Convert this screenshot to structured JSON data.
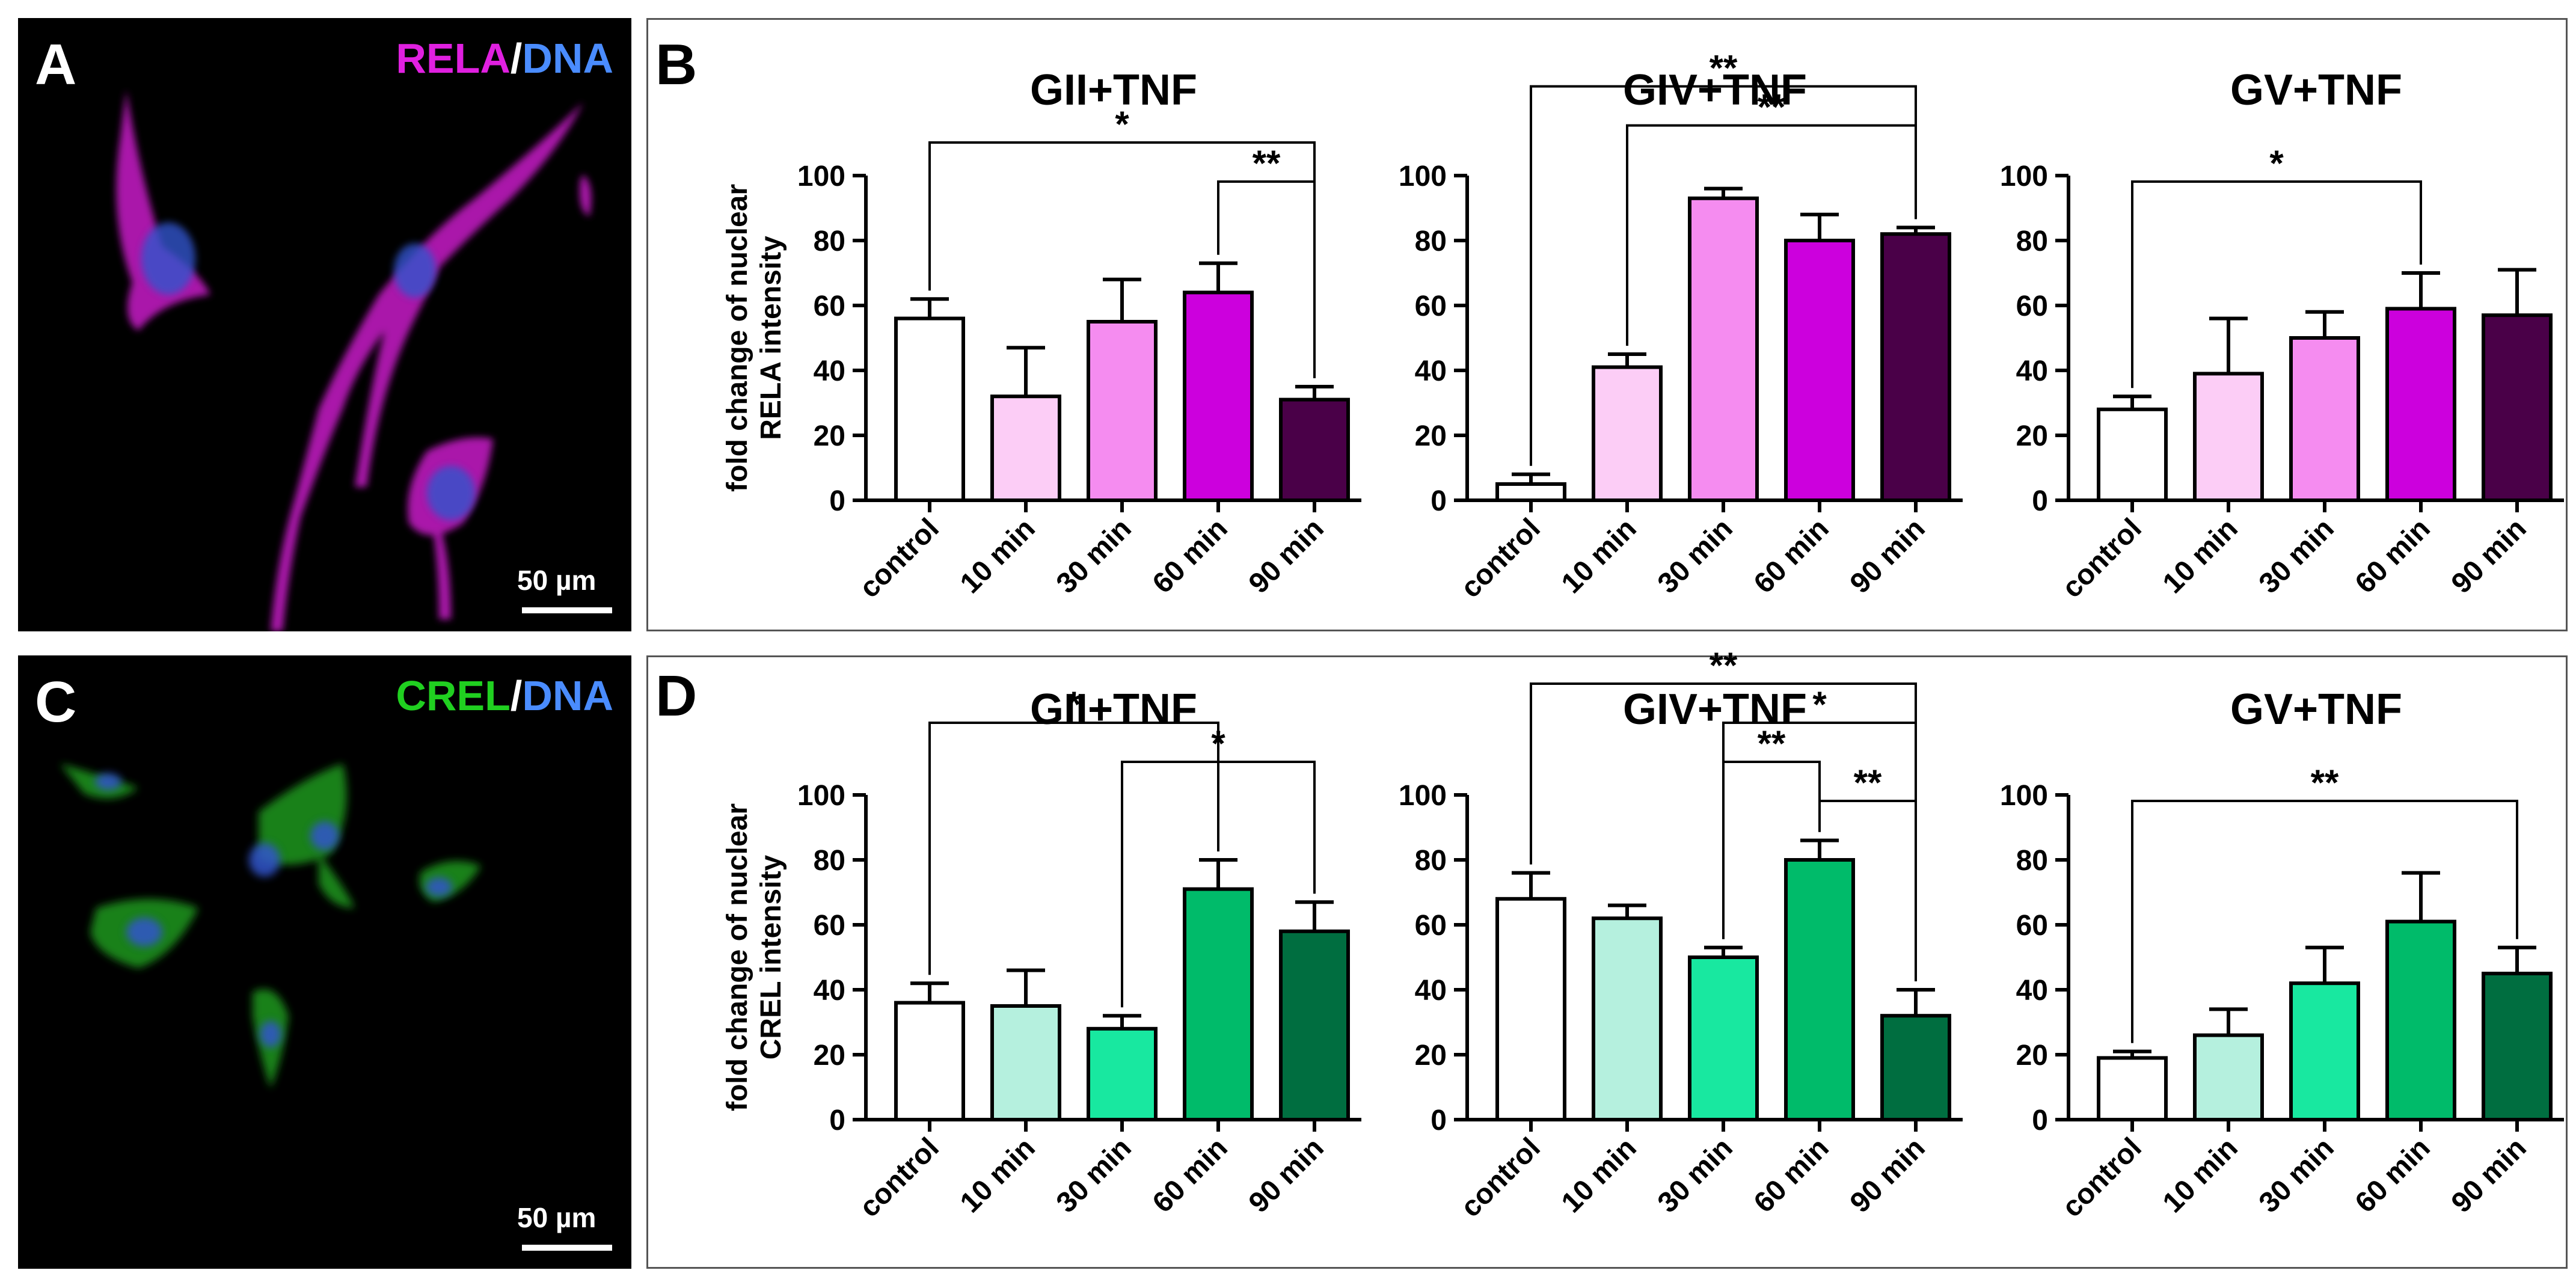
{
  "panels": {
    "A": {
      "label": "A",
      "stain_main": "RELA",
      "stain_sep": "/",
      "stain_dna": "DNA",
      "main_color": "#e020e0",
      "scale": "50 µm"
    },
    "B": {
      "label": "B"
    },
    "C": {
      "label": "C",
      "stain_main": "CREL",
      "stain_sep": "/",
      "stain_dna": "DNA",
      "main_color": "#20d020",
      "scale": "50 µm"
    },
    "D": {
      "label": "D"
    }
  },
  "colors": {
    "dna": "#4a8cff",
    "rela": [
      "#ffffff",
      "#fccdf6",
      "#f58cf0",
      "#cc00dd",
      "#4a0048"
    ],
    "crel": [
      "#ffffff",
      "#b5f0de",
      "#18e8a0",
      "#00bb6a",
      "#006e40"
    ]
  },
  "chart_data": [
    {
      "type": "bar",
      "panel": "B",
      "title": "GII+TNF",
      "ylabel": "fold change of nuclear RELA intensity",
      "ylabel_line1": "fold change of nuclear",
      "ylabel_line2": "RELA intensity",
      "categories": [
        "control",
        "10 min",
        "30 min",
        "60 min",
        "90 min"
      ],
      "values": [
        56,
        32,
        55,
        64,
        31
      ],
      "errors": [
        6,
        15,
        13,
        9,
        4
      ],
      "ylim": [
        0,
        100
      ],
      "yticks": [
        0,
        20,
        40,
        60,
        80,
        100
      ],
      "palette": "rela",
      "significance": [
        {
          "from": 0,
          "to": 4,
          "label": "*",
          "level": 1
        },
        {
          "from": 3,
          "to": 4,
          "label": "**",
          "level": 0
        }
      ]
    },
    {
      "type": "bar",
      "panel": "B",
      "title": "GIV+TNF",
      "categories": [
        "control",
        "10 min",
        "30 min",
        "60 min",
        "90 min"
      ],
      "values": [
        5,
        41,
        93,
        80,
        82
      ],
      "errors": [
        3,
        4,
        3,
        8,
        2
      ],
      "ylim": [
        0,
        100
      ],
      "yticks": [
        0,
        20,
        40,
        60,
        80,
        100
      ],
      "palette": "rela",
      "significance": [
        {
          "from": 0,
          "to": 4,
          "label": "**",
          "level": 2
        },
        {
          "from": 1,
          "to": 4,
          "label": "**",
          "level": 1
        }
      ]
    },
    {
      "type": "bar",
      "panel": "B",
      "title": "GV+TNF",
      "categories": [
        "control",
        "10 min",
        "30 min",
        "60 min",
        "90 min"
      ],
      "values": [
        28,
        39,
        50,
        59,
        57
      ],
      "errors": [
        4,
        17,
        8,
        11,
        14
      ],
      "ylim": [
        0,
        100
      ],
      "yticks": [
        0,
        20,
        40,
        60,
        80,
        100
      ],
      "palette": "rela",
      "significance": [
        {
          "from": 0,
          "to": 3,
          "label": "*",
          "level": 0
        }
      ]
    },
    {
      "type": "bar",
      "panel": "D",
      "title": "GII+TNF",
      "ylabel": "fold change of nuclear CREL intensity",
      "ylabel_line1": "fold change of nuclear",
      "ylabel_line2": "CREL intensity",
      "categories": [
        "control",
        "10 min",
        "30 min",
        "60 min",
        "90 min"
      ],
      "values": [
        36,
        35,
        28,
        71,
        58
      ],
      "errors": [
        6,
        11,
        4,
        9,
        9
      ],
      "ylim": [
        0,
        100
      ],
      "yticks": [
        0,
        20,
        40,
        60,
        80,
        100
      ],
      "palette": "crel",
      "significance": [
        {
          "from": 0,
          "to": 3,
          "label": "*",
          "level": 2
        },
        {
          "from": 2,
          "to": 4,
          "label": "*",
          "level": 1
        }
      ]
    },
    {
      "type": "bar",
      "panel": "D",
      "title": "GIV+TNF",
      "categories": [
        "control",
        "10 min",
        "30 min",
        "60 min",
        "90 min"
      ],
      "values": [
        68,
        62,
        50,
        80,
        32
      ],
      "errors": [
        8,
        4,
        3,
        6,
        8
      ],
      "ylim": [
        0,
        100
      ],
      "yticks": [
        0,
        20,
        40,
        60,
        80,
        100
      ],
      "palette": "crel",
      "significance": [
        {
          "from": 0,
          "to": 4,
          "label": "**",
          "level": 3
        },
        {
          "from": 2,
          "to": 4,
          "label": "*",
          "level": 2
        },
        {
          "from": 2,
          "to": 3,
          "label": "**",
          "level": 1
        },
        {
          "from": 3,
          "to": 4,
          "label": "**",
          "level": 0
        }
      ]
    },
    {
      "type": "bar",
      "panel": "D",
      "title": "GV+TNF",
      "categories": [
        "control",
        "10 min",
        "30 min",
        "60 min",
        "90 min"
      ],
      "values": [
        19,
        26,
        42,
        61,
        45
      ],
      "errors": [
        2,
        8,
        11,
        15,
        8
      ],
      "ylim": [
        0,
        100
      ],
      "yticks": [
        0,
        20,
        40,
        60,
        80,
        100
      ],
      "palette": "crel",
      "significance": [
        {
          "from": 0,
          "to": 4,
          "label": "**",
          "level": 0
        }
      ]
    }
  ]
}
